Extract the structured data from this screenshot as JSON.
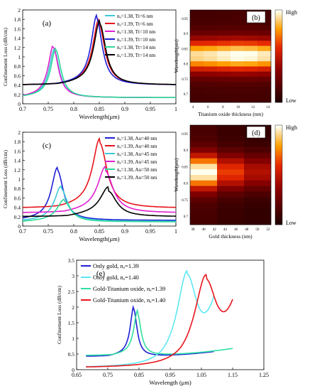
{
  "colors": {
    "blue": "#1f1fd6",
    "red": "#e8131b",
    "magenta": "#e020d0",
    "cyan": "#3ec8d6",
    "green": "#2ed89a",
    "black": "#000000",
    "cyan_light": "#5ee8f2",
    "green_e": "#2ee0a0"
  },
  "chart_data": [
    {
      "id": "a",
      "panel_label": "(a)",
      "type": "line",
      "xlabel": "Wavelength(μm)",
      "ylabel": "Confinement Loss (dB/cm)",
      "xlim": [
        0.7,
        1.0
      ],
      "ylim": [
        0,
        2.0
      ],
      "xticks": [
        "0.7",
        "0.75",
        "0.8",
        "0.85",
        "0.9",
        "0.95",
        "1"
      ],
      "yticks": [
        "0",
        "0.2",
        "0.4",
        "0.6",
        "0.8",
        "1",
        "1.2",
        "1.4",
        "1.6",
        "1.8",
        "2"
      ],
      "legend_position": "top-right",
      "series": [
        {
          "name": "nₐ=1.38, Tt=6 nm",
          "color": "cyan",
          "peak": [
            0.762,
            1.12
          ],
          "base": 0.13,
          "w": 0.012,
          "tail": 0.05
        },
        {
          "name": "nₐ=1.39, Tt=6 nm",
          "color": "red",
          "peak": [
            0.849,
            1.72
          ],
          "base": 0.4,
          "w": 0.014,
          "tail": 0.08
        },
        {
          "name": "nₐ=1.38, Tt=10 nm",
          "color": "magenta",
          "peak": [
            0.76,
            1.2
          ],
          "base": 0.13,
          "w": 0.012,
          "tail": 0.05
        },
        {
          "name": "nₐ=1.39, Tt=10 nm",
          "color": "blue",
          "peak": [
            0.845,
            1.81
          ],
          "base": 0.4,
          "w": 0.013,
          "tail": 0.08
        },
        {
          "name": "nₐ=1.38, Tt=14 nm",
          "color": "green",
          "peak": [
            0.765,
            1.14
          ],
          "base": 0.13,
          "w": 0.012,
          "tail": 0.05
        },
        {
          "name": "nₐ=1.39, Tt=14 nm",
          "color": "black",
          "peak": [
            0.851,
            1.7
          ],
          "base": 0.4,
          "w": 0.014,
          "tail": 0.08
        }
      ]
    },
    {
      "id": "b",
      "panel_label": "(b)",
      "type": "heatmap",
      "xlabel": "Titanium oxide thickness (nm)",
      "ylabel": "Wavelength(μm)",
      "xticks": [
        "4",
        "6",
        "8",
        "10",
        "12",
        "14"
      ],
      "yticks": [
        "0.7",
        "0.75",
        "0.8",
        "0.85",
        "0.9",
        "0.95"
      ],
      "colorbar": {
        "high": "High",
        "low": "Low"
      },
      "columns": 6,
      "rows": 18,
      "peak_row": 8.4,
      "column_gain": [
        0.92,
        0.94,
        0.97,
        1.0,
        0.99,
        0.95
      ],
      "colorbar_low": "Low",
      "colorbar_high": "High"
    },
    {
      "id": "c",
      "panel_label": "(c)",
      "type": "line",
      "xlabel": "Wavelength(μm)",
      "ylabel": "Confinement Loss (dB/cm)",
      "xlim": [
        0.7,
        1.0
      ],
      "ylim": [
        0,
        2.0
      ],
      "xticks": [
        "0.7",
        "0.75",
        "0.8",
        "0.85",
        "0.9",
        "0.95",
        "1"
      ],
      "yticks": [
        "0",
        "0.2",
        "0.4",
        "0.6",
        "0.8",
        "1",
        "1.2",
        "1.4",
        "1.6",
        "1.8",
        "2"
      ],
      "legend_position": "top-right",
      "series": [
        {
          "name": "nₐ=1.38, Au=40 nm",
          "color": "blue",
          "peak": [
            0.768,
            1.19
          ],
          "base": 0.12,
          "w": 0.014,
          "tail": 0.06
        },
        {
          "name": "nₐ=1.39, Au=40 nm",
          "color": "red",
          "peak": [
            0.851,
            1.77
          ],
          "base": 0.38,
          "w": 0.017,
          "tail": 0.1
        },
        {
          "name": "nₐ=1.38, Au=45 nm",
          "color": "cyan",
          "peak": [
            0.775,
            0.8
          ],
          "base": 0.1,
          "w": 0.015,
          "tail": 0.05
        },
        {
          "name": "nₐ=1.39, Au=45 nm",
          "color": "magenta",
          "peak": [
            0.862,
            1.17
          ],
          "base": 0.28,
          "w": 0.018,
          "tail": 0.1
        },
        {
          "name": "nₐ=1.38, Au=50 nm",
          "color": "green",
          "peak": [
            0.781,
            0.53
          ],
          "base": 0.09,
          "w": 0.016,
          "tail": 0.04
        },
        {
          "name": "nₐ=1.39, Au=50 nm",
          "color": "black",
          "peak": [
            0.868,
            0.74
          ],
          "base": 0.2,
          "w": 0.019,
          "tail": 0.1
        }
      ]
    },
    {
      "id": "d",
      "panel_label": "(d)",
      "type": "heatmap",
      "xlabel": "Gold thickness (nm)",
      "ylabel": "Wavelength(μm)",
      "xticks": [
        "38",
        "40",
        "42",
        "44",
        "46",
        "48",
        "50",
        "52"
      ],
      "yticks": [
        "0.7",
        "0.75",
        "0.8",
        "0.85",
        "0.9",
        "0.95"
      ],
      "colorbar": {
        "high": "High",
        "low": "Low"
      },
      "columns": 3,
      "rows": 18,
      "peak_row": 8.0,
      "column_gain": [
        1.0,
        0.62,
        0.45
      ],
      "colorbar_low": "Low",
      "colorbar_high": "High"
    },
    {
      "id": "e",
      "panel_label": "(e)",
      "type": "line",
      "xlabel": "Wavelength (μm)",
      "ylabel": "Confinement Loss (dB/cm)",
      "xlim": [
        0.65,
        1.25
      ],
      "ylim": [
        0,
        3.5
      ],
      "xticks": [
        "0.65",
        "0.75",
        "0.85",
        "0.95",
        "1.05",
        "1.15",
        "1.25"
      ],
      "yticks": [
        "0",
        "0.5",
        "1",
        "1.5",
        "2",
        "2.5",
        "3",
        "3.5"
      ],
      "legend_position": "top-left",
      "series": [
        {
          "name": "Only gold, nₐ=1.39",
          "color": "blue",
          "peak": [
            0.833,
            1.93
          ],
          "base": 0.42,
          "w": 0.013,
          "tail": 0.1,
          "range": [
            0.68,
            1.09
          ],
          "end": 0.58
        },
        {
          "name": "Only gold, nₐ=1.40",
          "color": "cyan_light",
          "peak": [
            1.005,
            3.05
          ],
          "base": 0.05,
          "w": 0.04,
          "tail": 0.12,
          "range": [
            0.68,
            1.09
          ],
          "end": 2.35
        },
        {
          "name": "Gold-Titanium oxide, nₐ=1.39",
          "color": "green_e",
          "peak": [
            0.845,
            1.79
          ],
          "base": 0.45,
          "w": 0.014,
          "tail": 0.1,
          "range": [
            0.68,
            1.15
          ],
          "end": 0.68
        },
        {
          "name": "Gold-Titanium oxide, nₐ=1.40",
          "color": "red",
          "peak": [
            1.065,
            2.9
          ],
          "base": 0.05,
          "w": 0.045,
          "tail": 0.14,
          "range": [
            0.68,
            1.15
          ],
          "end": 2.25
        }
      ]
    }
  ]
}
